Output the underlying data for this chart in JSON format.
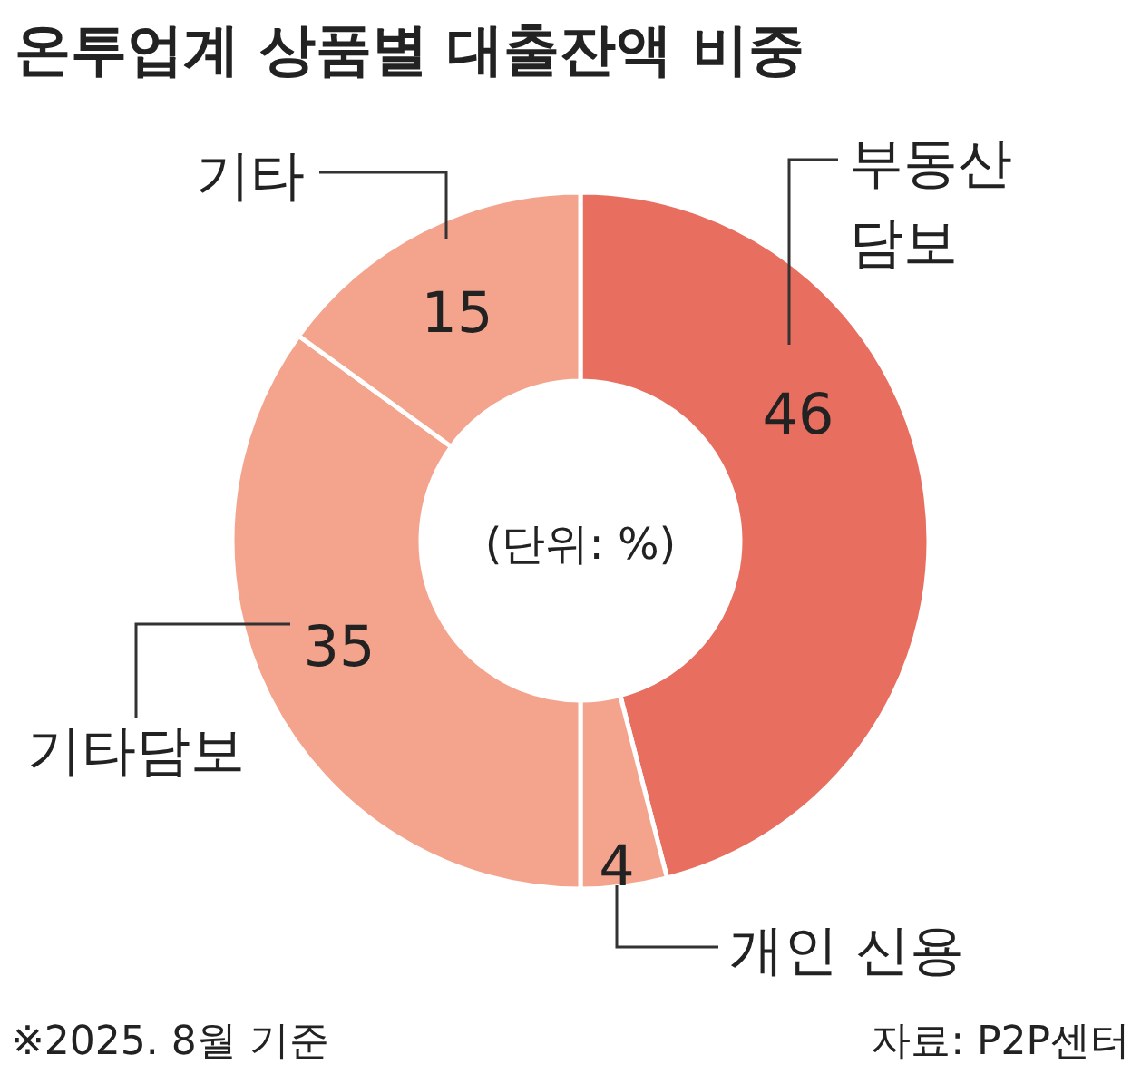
{
  "chart_data": {
    "type": "donut",
    "title": "온투업계 상품별 대출잔액 비중",
    "categories": [
      "부동산\n담보",
      "개인 신용",
      "기타담보",
      "기타"
    ],
    "values": [
      46,
      4,
      35,
      15
    ],
    "colors": [
      "#e86e60",
      "#f4a38d",
      "#f4a38d",
      "#f4a38d"
    ],
    "data_labels": true,
    "annotations": [
      "(단위: %)",
      "※2025. 8월 기준",
      "자료: P2P센터"
    ]
  }
}
